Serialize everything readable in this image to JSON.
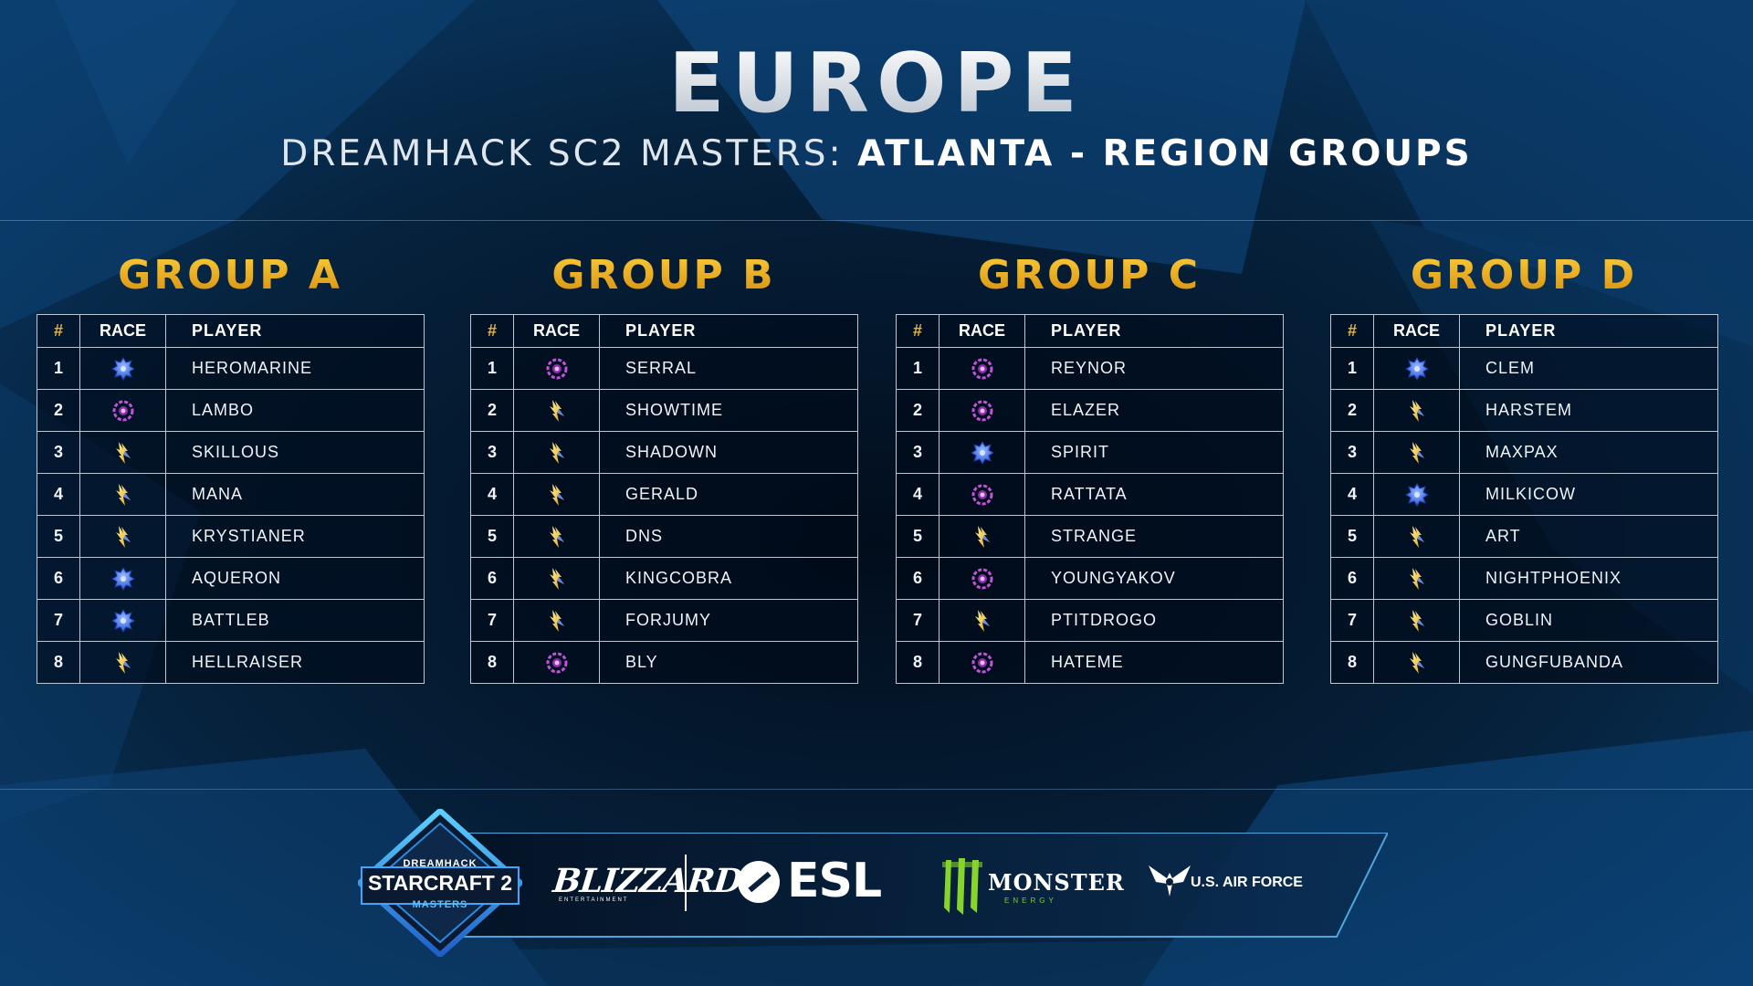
{
  "header": {
    "title": "EUROPE",
    "subtitle_light": "DREAMHACK SC2 MASTERS: ",
    "subtitle_bold": "ATLANTA - REGION GROUPS"
  },
  "table_headers": {
    "num": "#",
    "race": "RACE",
    "player": "PLAYER"
  },
  "race_icons": {
    "terran": "terran-icon",
    "zerg": "zerg-icon",
    "protoss": "protoss-icon"
  },
  "colors": {
    "group_title": "#e9a914",
    "header_hash": "#f0b21d",
    "terran": "#3d74ff",
    "zerg": "#c452d8",
    "protoss": "#f4c324"
  },
  "groups": [
    {
      "title": "GROUP A",
      "players": [
        {
          "num": "1",
          "race": "terran",
          "name": "HEROMARINE"
        },
        {
          "num": "2",
          "race": "zerg",
          "name": "LAMBO"
        },
        {
          "num": "3",
          "race": "protoss",
          "name": "SKILLOUS"
        },
        {
          "num": "4",
          "race": "protoss",
          "name": "MANA"
        },
        {
          "num": "5",
          "race": "protoss",
          "name": "KRYSTIANER"
        },
        {
          "num": "6",
          "race": "terran",
          "name": "AQUERON"
        },
        {
          "num": "7",
          "race": "terran",
          "name": "BATTLEB"
        },
        {
          "num": "8",
          "race": "protoss",
          "name": "HELLRAISER"
        }
      ]
    },
    {
      "title": "GROUP B",
      "players": [
        {
          "num": "1",
          "race": "zerg",
          "name": "SERRAL"
        },
        {
          "num": "2",
          "race": "protoss",
          "name": "SHOWTIME"
        },
        {
          "num": "3",
          "race": "protoss",
          "name": "SHADOWN"
        },
        {
          "num": "4",
          "race": "protoss",
          "name": "GERALD"
        },
        {
          "num": "5",
          "race": "protoss",
          "name": "DNS"
        },
        {
          "num": "6",
          "race": "protoss",
          "name": "KINGCOBRA"
        },
        {
          "num": "7",
          "race": "protoss",
          "name": "FORJUMY"
        },
        {
          "num": "8",
          "race": "zerg",
          "name": "BLY"
        }
      ]
    },
    {
      "title": "GROUP C",
      "players": [
        {
          "num": "1",
          "race": "zerg",
          "name": "REYNOR"
        },
        {
          "num": "2",
          "race": "zerg",
          "name": "ELAZER"
        },
        {
          "num": "3",
          "race": "terran",
          "name": "SPIRIT"
        },
        {
          "num": "4",
          "race": "zerg",
          "name": "RATTATA"
        },
        {
          "num": "5",
          "race": "protoss",
          "name": "STRANGE"
        },
        {
          "num": "6",
          "race": "zerg",
          "name": "YOUNGYAKOV"
        },
        {
          "num": "7",
          "race": "protoss",
          "name": "PTITDROGO"
        },
        {
          "num": "8",
          "race": "zerg",
          "name": "HATEME"
        }
      ]
    },
    {
      "title": "GROUP D",
      "players": [
        {
          "num": "1",
          "race": "terran",
          "name": "CLEM"
        },
        {
          "num": "2",
          "race": "protoss",
          "name": "HARSTEM"
        },
        {
          "num": "3",
          "race": "protoss",
          "name": "MAXPAX"
        },
        {
          "num": "4",
          "race": "terran",
          "name": "MILKICOW"
        },
        {
          "num": "5",
          "race": "protoss",
          "name": "ART"
        },
        {
          "num": "6",
          "race": "protoss",
          "name": "NIGHTPHOENIX"
        },
        {
          "num": "7",
          "race": "protoss",
          "name": "GOBLIN"
        },
        {
          "num": "8",
          "race": "protoss",
          "name": "GUNGFUBANDA"
        }
      ]
    }
  ],
  "footer": {
    "badge_top": "DREAMHACK",
    "badge_main": "STARCRAFT 2",
    "badge_bottom": "MASTERS",
    "blizzard": "BLIZZARD",
    "blizzard_sub": "ENTERTAINMENT",
    "esl": "ESL",
    "monster": "MONSTER",
    "monster_sub": "ENERGY",
    "airforce": "U.S. AIR FORCE"
  }
}
